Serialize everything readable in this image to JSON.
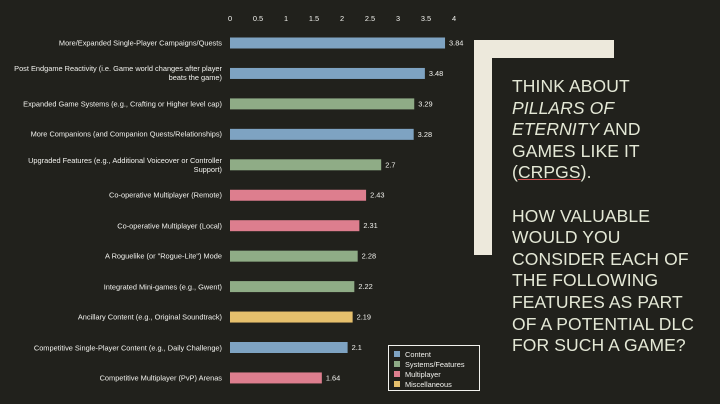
{
  "chart_data": {
    "type": "bar",
    "orientation": "horizontal",
    "categories": [
      "More/Expanded Single-Player Campaigns/Quests",
      "Post Endgame Reactivity (i.e. Game world changes after player beats the game)",
      "Expanded Game Systems (e.g., Crafting or Higher level cap)",
      "More Companions (and Companion Quests/Relationships)",
      "Upgraded Features (e.g., Additional Voiceover or Controller Support)",
      "Co-operative Multiplayer (Remote)",
      "Co-operative Multiplayer (Local)",
      "A Roguelike (or \"Rogue-Lite\") Mode",
      "Integrated Mini-games (e.g., Gwent)",
      "Ancillary Content (e.g., Original Soundtrack)",
      "Competitive Single-Player Content (e.g., Daily Challenge)",
      "Competitive Multiplayer (PvP) Arenas"
    ],
    "series": [
      {
        "name": "Content",
        "color": "#7ea3c2",
        "values": [
          3.84,
          3.48,
          null,
          3.28,
          null,
          null,
          null,
          null,
          null,
          null,
          2.1,
          null
        ]
      },
      {
        "name": "Systems/Features",
        "color": "#8fac86",
        "values": [
          null,
          null,
          3.29,
          null,
          2.7,
          null,
          null,
          2.28,
          2.22,
          null,
          null,
          null
        ]
      },
      {
        "name": "Multiplayer",
        "color": "#dd7e8e",
        "values": [
          null,
          null,
          null,
          null,
          null,
          2.43,
          2.31,
          null,
          null,
          null,
          null,
          1.64
        ]
      },
      {
        "name": "Miscellaneous",
        "color": "#e6c06c",
        "values": [
          null,
          null,
          null,
          null,
          null,
          null,
          null,
          null,
          null,
          2.19,
          null,
          null
        ]
      }
    ],
    "xlim": [
      0,
      4
    ],
    "xticks": [
      0,
      0.5,
      1,
      1.5,
      2,
      2.5,
      3,
      3.5,
      4
    ],
    "axis_position": "top",
    "legend": "bottom-right"
  },
  "side_text": {
    "paragraph1": [
      "THINK ABOUT",
      "PILLARS OF ETERNITY",
      "AND GAMES LIKE IT (",
      "CRPGS",
      ")."
    ],
    "paragraph2": "HOW VALUABLE WOULD YOU CONSIDER EACH OF THE FOLLOWING FEATURES AS PART OF A POTENTIAL DLC FOR SUCH A GAME?"
  }
}
